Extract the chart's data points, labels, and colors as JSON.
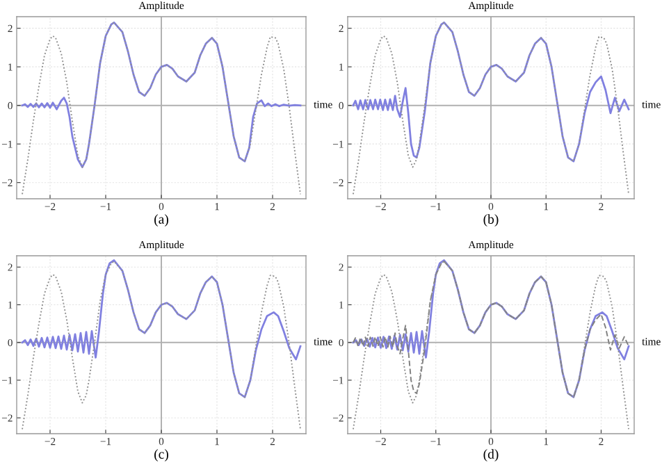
{
  "chart_data": [
    {
      "type": "line",
      "ylabel": "Amplitude",
      "xlabel": "time",
      "annotations": [
        "(a)"
      ],
      "xlim": [
        -2.6,
        2.6
      ],
      "ylim": [
        -2.42,
        2.3
      ],
      "xticks": [
        -2,
        -1,
        0,
        1,
        2
      ],
      "yticks": [
        -2,
        -1,
        0,
        1,
        2
      ],
      "grid": true,
      "series": [
        {
          "color": "#8080e0",
          "line_style": "solid",
          "x": [
            -2.5,
            -2.45,
            -2.4,
            -2.35,
            -2.3,
            -2.25,
            -2.2,
            -2.15,
            -2.1,
            -2.05,
            -2.0,
            -1.95,
            -1.88,
            -1.8,
            -1.75,
            -1.7,
            -1.65,
            -1.6,
            -1.5,
            -1.42,
            -1.35,
            -1.3,
            -1.2,
            -1.1,
            -1.0,
            -0.9,
            -0.85,
            -0.7,
            -0.6,
            -0.5,
            -0.4,
            -0.3,
            -0.2,
            -0.1,
            0,
            0.1,
            0.2,
            0.3,
            0.45,
            0.6,
            0.7,
            0.8,
            0.91,
            1.0,
            1.1,
            1.2,
            1.3,
            1.4,
            1.5,
            1.58,
            1.65,
            1.72,
            1.8,
            1.86,
            1.92,
            1.98,
            2.05,
            2.12,
            2.2,
            2.3,
            2.4,
            2.5
          ],
          "values": [
            0,
            0.03,
            -0.04,
            0.04,
            -0.04,
            0.05,
            -0.05,
            0.05,
            -0.05,
            0.06,
            -0.06,
            0.07,
            -0.1,
            0.12,
            0.2,
            0.05,
            -0.3,
            -0.8,
            -1.4,
            -1.6,
            -1.4,
            -1.0,
            0.0,
            1.1,
            1.8,
            2.1,
            2.15,
            1.9,
            1.4,
            0.8,
            0.35,
            0.25,
            0.45,
            0.8,
            1.0,
            1.05,
            0.95,
            0.75,
            0.62,
            0.85,
            1.3,
            1.6,
            1.75,
            1.6,
            1.0,
            0.1,
            -0.8,
            -1.35,
            -1.45,
            -1.1,
            -0.3,
            0.05,
            0.13,
            -0.02,
            0.05,
            -0.02,
            0.03,
            -0.02,
            0.02,
            -0.01,
            0.01,
            0
          ]
        },
        {
          "color": "#909090",
          "line_style": "dotted",
          "x": [
            -2.5,
            -2.4,
            -2.3,
            -2.2,
            -2.1,
            -2.0,
            -1.95,
            -1.9,
            -1.8,
            -1.7,
            -1.6,
            -1.5,
            -1.42,
            -1.35,
            -1.3,
            -1.2,
            -1.1,
            -1.0,
            -0.9,
            -0.85,
            -0.7,
            -0.6,
            -0.5,
            -0.4,
            -0.3,
            -0.2,
            -0.1,
            0,
            0.1,
            0.2,
            0.3,
            0.45,
            0.6,
            0.7,
            0.8,
            0.91,
            1.0,
            1.1,
            1.2,
            1.3,
            1.4,
            1.5,
            1.6,
            1.7,
            1.8,
            1.9,
            1.96,
            2.05,
            2.1,
            2.2,
            2.3,
            2.4,
            2.5
          ],
          "values": [
            -2.3,
            -1.4,
            -0.4,
            0.5,
            1.3,
            1.72,
            1.8,
            1.75,
            1.35,
            0.6,
            -0.4,
            -1.3,
            -1.6,
            -1.4,
            -1.0,
            0.0,
            1.1,
            1.8,
            2.1,
            2.15,
            1.9,
            1.4,
            0.8,
            0.35,
            0.25,
            0.45,
            0.8,
            1.0,
            1.05,
            0.95,
            0.75,
            0.62,
            0.85,
            1.3,
            1.6,
            1.75,
            1.6,
            1.0,
            0.1,
            -0.8,
            -1.35,
            -1.45,
            -1.0,
            -0.1,
            0.8,
            1.5,
            1.78,
            1.75,
            1.6,
            0.95,
            -0.05,
            -1.2,
            -2.3
          ]
        }
      ]
    },
    {
      "type": "line",
      "ylabel": "Amplitude",
      "xlabel": "time",
      "annotations": [
        "(b)"
      ],
      "xlim": [
        -2.6,
        2.6
      ],
      "ylim": [
        -2.42,
        2.3
      ],
      "xticks": [
        -2,
        -1,
        0,
        1,
        2
      ],
      "yticks": [
        -2,
        -1,
        0,
        1,
        2
      ],
      "grid": true,
      "series": [
        {
          "color": "#8080e0",
          "line_style": "solid",
          "x": [
            -2.5,
            -2.46,
            -2.41,
            -2.37,
            -2.32,
            -2.28,
            -2.23,
            -2.19,
            -2.14,
            -2.1,
            -2.05,
            -2.01,
            -1.96,
            -1.92,
            -1.87,
            -1.83,
            -1.78,
            -1.74,
            -1.7,
            -1.65,
            -1.6,
            -1.55,
            -1.5,
            -1.45,
            -1.4,
            -1.35,
            -1.3,
            -1.2,
            -1.1,
            -1.0,
            -0.9,
            -0.85,
            -0.7,
            -0.6,
            -0.5,
            -0.4,
            -0.3,
            -0.2,
            -0.1,
            0,
            0.1,
            0.2,
            0.3,
            0.45,
            0.6,
            0.7,
            0.8,
            0.91,
            1.0,
            1.1,
            1.2,
            1.3,
            1.4,
            1.5,
            1.6,
            1.7,
            1.8,
            1.9,
            2.0,
            2.08,
            2.17,
            2.25,
            2.33,
            2.42,
            2.5
          ],
          "values": [
            0,
            0.12,
            -0.1,
            0.13,
            -0.1,
            0.14,
            -0.1,
            0.14,
            -0.1,
            0.15,
            -0.1,
            0.15,
            -0.12,
            0.15,
            -0.12,
            0.16,
            -0.12,
            0.25,
            -0.1,
            -0.3,
            0.1,
            0.45,
            -0.2,
            -1.0,
            -1.3,
            -1.35,
            -1.1,
            -0.15,
            1.1,
            1.8,
            2.1,
            2.15,
            1.9,
            1.4,
            0.8,
            0.35,
            0.25,
            0.45,
            0.8,
            1.0,
            1.05,
            0.95,
            0.75,
            0.62,
            0.85,
            1.3,
            1.6,
            1.75,
            1.6,
            1.0,
            0.1,
            -0.8,
            -1.35,
            -1.45,
            -1.0,
            -0.2,
            0.35,
            0.6,
            0.75,
            0.4,
            -0.2,
            0.2,
            -0.15,
            0.15,
            -0.1
          ]
        },
        {
          "color": "#909090",
          "line_style": "dotted",
          "x": [
            -2.5,
            -2.4,
            -2.3,
            -2.2,
            -2.1,
            -2.0,
            -1.95,
            -1.9,
            -1.8,
            -1.7,
            -1.6,
            -1.5,
            -1.42,
            -1.35,
            -1.3,
            -1.2,
            -1.1,
            -1.0,
            -0.9,
            -0.85,
            -0.7,
            -0.6,
            -0.5,
            -0.4,
            -0.3,
            -0.2,
            -0.1,
            0,
            0.1,
            0.2,
            0.3,
            0.45,
            0.6,
            0.7,
            0.8,
            0.91,
            1.0,
            1.1,
            1.2,
            1.3,
            1.4,
            1.5,
            1.6,
            1.7,
            1.8,
            1.9,
            1.96,
            2.05,
            2.1,
            2.2,
            2.3,
            2.4,
            2.5
          ],
          "values": [
            -2.3,
            -1.4,
            -0.4,
            0.5,
            1.3,
            1.72,
            1.8,
            1.75,
            1.35,
            0.6,
            -0.4,
            -1.3,
            -1.6,
            -1.4,
            -1.0,
            0.0,
            1.1,
            1.8,
            2.1,
            2.15,
            1.9,
            1.4,
            0.8,
            0.35,
            0.25,
            0.45,
            0.8,
            1.0,
            1.05,
            0.95,
            0.75,
            0.62,
            0.85,
            1.3,
            1.6,
            1.75,
            1.6,
            1.0,
            0.1,
            -0.8,
            -1.35,
            -1.45,
            -1.0,
            -0.1,
            0.8,
            1.5,
            1.78,
            1.75,
            1.6,
            0.95,
            -0.05,
            -1.2,
            -2.3
          ]
        }
      ]
    },
    {
      "type": "line",
      "ylabel": "Amplitude",
      "xlabel": "time",
      "annotations": [
        "(c)"
      ],
      "xlim": [
        -2.6,
        2.6
      ],
      "ylim": [
        -2.42,
        2.3
      ],
      "xticks": [
        -2,
        -1,
        0,
        1,
        2
      ],
      "yticks": [
        -2,
        -1,
        0,
        1,
        2
      ],
      "grid": true,
      "series": [
        {
          "color": "#8080e0",
          "line_style": "solid",
          "x": [
            -2.5,
            -2.45,
            -2.4,
            -2.35,
            -2.3,
            -2.25,
            -2.2,
            -2.15,
            -2.1,
            -2.05,
            -2.0,
            -1.95,
            -1.9,
            -1.85,
            -1.8,
            -1.75,
            -1.7,
            -1.65,
            -1.6,
            -1.55,
            -1.5,
            -1.45,
            -1.4,
            -1.35,
            -1.3,
            -1.25,
            -1.18,
            -1.12,
            -1.05,
            -1.0,
            -0.93,
            -0.85,
            -0.7,
            -0.6,
            -0.5,
            -0.4,
            -0.3,
            -0.2,
            -0.1,
            0,
            0.1,
            0.2,
            0.3,
            0.45,
            0.6,
            0.7,
            0.8,
            0.91,
            1.0,
            1.1,
            1.2,
            1.3,
            1.4,
            1.5,
            1.6,
            1.7,
            1.8,
            1.9,
            2.02,
            2.1,
            2.2,
            2.3,
            2.42,
            2.5
          ],
          "values": [
            0,
            0.06,
            -0.07,
            0.08,
            -0.09,
            0.1,
            -0.11,
            0.12,
            -0.13,
            0.13,
            -0.14,
            0.15,
            -0.15,
            0.16,
            -0.17,
            0.18,
            -0.19,
            0.2,
            -0.21,
            0.22,
            -0.24,
            0.25,
            -0.27,
            0.28,
            -0.3,
            0.3,
            -0.4,
            0.3,
            1.3,
            1.8,
            2.1,
            2.18,
            1.9,
            1.4,
            0.8,
            0.35,
            0.25,
            0.45,
            0.8,
            1.0,
            1.05,
            0.95,
            0.75,
            0.62,
            0.85,
            1.3,
            1.6,
            1.75,
            1.6,
            1.0,
            0.1,
            -0.8,
            -1.35,
            -1.45,
            -1.0,
            -0.2,
            0.35,
            0.7,
            0.8,
            0.7,
            0.3,
            -0.15,
            -0.45,
            -0.1
          ]
        },
        {
          "color": "#909090",
          "line_style": "dotted",
          "x": [
            -2.5,
            -2.4,
            -2.3,
            -2.2,
            -2.1,
            -2.0,
            -1.95,
            -1.9,
            -1.8,
            -1.7,
            -1.6,
            -1.5,
            -1.42,
            -1.35,
            -1.3,
            -1.2,
            -1.1,
            -1.0,
            -0.9,
            -0.85,
            -0.7,
            -0.6,
            -0.5,
            -0.4,
            -0.3,
            -0.2,
            -0.1,
            0,
            0.1,
            0.2,
            0.3,
            0.45,
            0.6,
            0.7,
            0.8,
            0.91,
            1.0,
            1.1,
            1.2,
            1.3,
            1.4,
            1.5,
            1.6,
            1.7,
            1.8,
            1.9,
            1.96,
            2.05,
            2.1,
            2.2,
            2.3,
            2.4,
            2.5
          ],
          "values": [
            -2.3,
            -1.4,
            -0.4,
            0.5,
            1.3,
            1.72,
            1.8,
            1.75,
            1.35,
            0.6,
            -0.4,
            -1.3,
            -1.6,
            -1.4,
            -1.0,
            0.0,
            1.1,
            1.8,
            2.1,
            2.15,
            1.9,
            1.4,
            0.8,
            0.35,
            0.25,
            0.45,
            0.8,
            1.0,
            1.05,
            0.95,
            0.75,
            0.62,
            0.85,
            1.3,
            1.6,
            1.75,
            1.6,
            1.0,
            0.1,
            -0.8,
            -1.35,
            -1.45,
            -1.0,
            -0.1,
            0.8,
            1.5,
            1.78,
            1.75,
            1.6,
            0.95,
            -0.05,
            -1.2,
            -2.3
          ]
        }
      ]
    },
    {
      "type": "line",
      "ylabel": "Amplitude",
      "xlabel": "time",
      "annotations": [
        "(d)"
      ],
      "xlim": [
        -2.6,
        2.6
      ],
      "ylim": [
        -2.42,
        2.3
      ],
      "xticks": [
        -2,
        -1,
        0,
        1,
        2
      ],
      "yticks": [
        -2,
        -1,
        0,
        1,
        2
      ],
      "grid": true,
      "series": [
        {
          "color": "#8080e0",
          "line_style": "solid",
          "x": [
            -2.5,
            -2.45,
            -2.4,
            -2.35,
            -2.3,
            -2.25,
            -2.2,
            -2.15,
            -2.1,
            -2.05,
            -2.0,
            -1.95,
            -1.9,
            -1.85,
            -1.8,
            -1.75,
            -1.7,
            -1.65,
            -1.6,
            -1.55,
            -1.5,
            -1.45,
            -1.4,
            -1.35,
            -1.3,
            -1.25,
            -1.18,
            -1.12,
            -1.05,
            -1.0,
            -0.93,
            -0.85,
            -0.7,
            -0.6,
            -0.5,
            -0.4,
            -0.3,
            -0.2,
            -0.1,
            0,
            0.1,
            0.2,
            0.3,
            0.45,
            0.6,
            0.7,
            0.8,
            0.91,
            1.0,
            1.1,
            1.2,
            1.3,
            1.4,
            1.5,
            1.6,
            1.7,
            1.8,
            1.9,
            2.02,
            2.1,
            2.2,
            2.3,
            2.42,
            2.5
          ],
          "values": [
            0,
            0.06,
            -0.07,
            0.08,
            -0.09,
            0.1,
            -0.11,
            0.12,
            -0.13,
            0.13,
            -0.14,
            0.15,
            -0.15,
            0.16,
            -0.17,
            0.18,
            -0.19,
            0.2,
            -0.21,
            0.22,
            -0.24,
            0.25,
            -0.27,
            0.28,
            -0.3,
            0.3,
            -0.4,
            0.3,
            1.3,
            1.8,
            2.1,
            2.18,
            1.9,
            1.4,
            0.8,
            0.35,
            0.25,
            0.45,
            0.8,
            1.0,
            1.05,
            0.95,
            0.75,
            0.62,
            0.85,
            1.3,
            1.6,
            1.75,
            1.6,
            1.0,
            0.1,
            -0.8,
            -1.35,
            -1.45,
            -1.0,
            -0.2,
            0.35,
            0.7,
            0.8,
            0.7,
            0.3,
            -0.15,
            -0.45,
            -0.1
          ]
        },
        {
          "color": "#808080",
          "line_style": "dashed",
          "x": [
            -2.5,
            -2.46,
            -2.41,
            -2.37,
            -2.32,
            -2.28,
            -2.23,
            -2.19,
            -2.14,
            -2.1,
            -2.05,
            -2.01,
            -1.96,
            -1.92,
            -1.87,
            -1.83,
            -1.78,
            -1.74,
            -1.7,
            -1.65,
            -1.6,
            -1.55,
            -1.5,
            -1.45,
            -1.4,
            -1.35,
            -1.3,
            -1.2,
            -1.1,
            -1.0,
            -0.9,
            -0.85,
            -0.7,
            -0.6,
            -0.5,
            -0.4,
            -0.3,
            -0.2,
            -0.1,
            0,
            0.1,
            0.2,
            0.3,
            0.45,
            0.6,
            0.7,
            0.8,
            0.91,
            1.0,
            1.1,
            1.2,
            1.3,
            1.4,
            1.5,
            1.6,
            1.7,
            1.8,
            1.9,
            2.0,
            2.08,
            2.17,
            2.25,
            2.33,
            2.42,
            2.5
          ],
          "values": [
            0,
            0.12,
            -0.1,
            0.13,
            -0.1,
            0.14,
            -0.1,
            0.14,
            -0.1,
            0.15,
            -0.1,
            0.15,
            -0.12,
            0.15,
            -0.12,
            0.16,
            -0.12,
            0.25,
            -0.1,
            -0.3,
            0.1,
            0.45,
            -0.2,
            -1.0,
            -1.3,
            -1.35,
            -1.1,
            -0.15,
            1.1,
            1.8,
            2.1,
            2.15,
            1.9,
            1.4,
            0.8,
            0.35,
            0.25,
            0.45,
            0.8,
            1.0,
            1.05,
            0.95,
            0.75,
            0.62,
            0.85,
            1.3,
            1.6,
            1.75,
            1.6,
            1.0,
            0.1,
            -0.8,
            -1.35,
            -1.45,
            -1.0,
            -0.2,
            0.35,
            0.6,
            0.75,
            0.4,
            -0.2,
            0.2,
            -0.15,
            0.15,
            -0.1
          ]
        },
        {
          "color": "#909090",
          "line_style": "dotted",
          "x": [
            -2.5,
            -2.4,
            -2.3,
            -2.2,
            -2.1,
            -2.0,
            -1.95,
            -1.9,
            -1.8,
            -1.7,
            -1.6,
            -1.5,
            -1.42,
            -1.35,
            -1.3,
            -1.2,
            -1.1,
            -1.0,
            -0.9,
            -0.85,
            -0.7,
            -0.6,
            -0.5,
            -0.4,
            -0.3,
            -0.2,
            -0.1,
            0,
            0.1,
            0.2,
            0.3,
            0.45,
            0.6,
            0.7,
            0.8,
            0.91,
            1.0,
            1.1,
            1.2,
            1.3,
            1.4,
            1.5,
            1.6,
            1.7,
            1.8,
            1.9,
            1.96,
            2.05,
            2.1,
            2.2,
            2.3,
            2.4,
            2.5
          ],
          "values": [
            -2.3,
            -1.4,
            -0.4,
            0.5,
            1.3,
            1.72,
            1.8,
            1.75,
            1.35,
            0.6,
            -0.4,
            -1.3,
            -1.6,
            -1.4,
            -1.0,
            0.0,
            1.1,
            1.8,
            2.1,
            2.15,
            1.9,
            1.4,
            0.8,
            0.35,
            0.25,
            0.45,
            0.8,
            1.0,
            1.05,
            0.95,
            0.75,
            0.62,
            0.85,
            1.3,
            1.6,
            1.75,
            1.6,
            1.0,
            0.1,
            -0.8,
            -1.35,
            -1.45,
            -1.0,
            -0.1,
            0.8,
            1.5,
            1.78,
            1.75,
            1.6,
            0.95,
            -0.05,
            -1.2,
            -2.3
          ]
        }
      ]
    }
  ]
}
